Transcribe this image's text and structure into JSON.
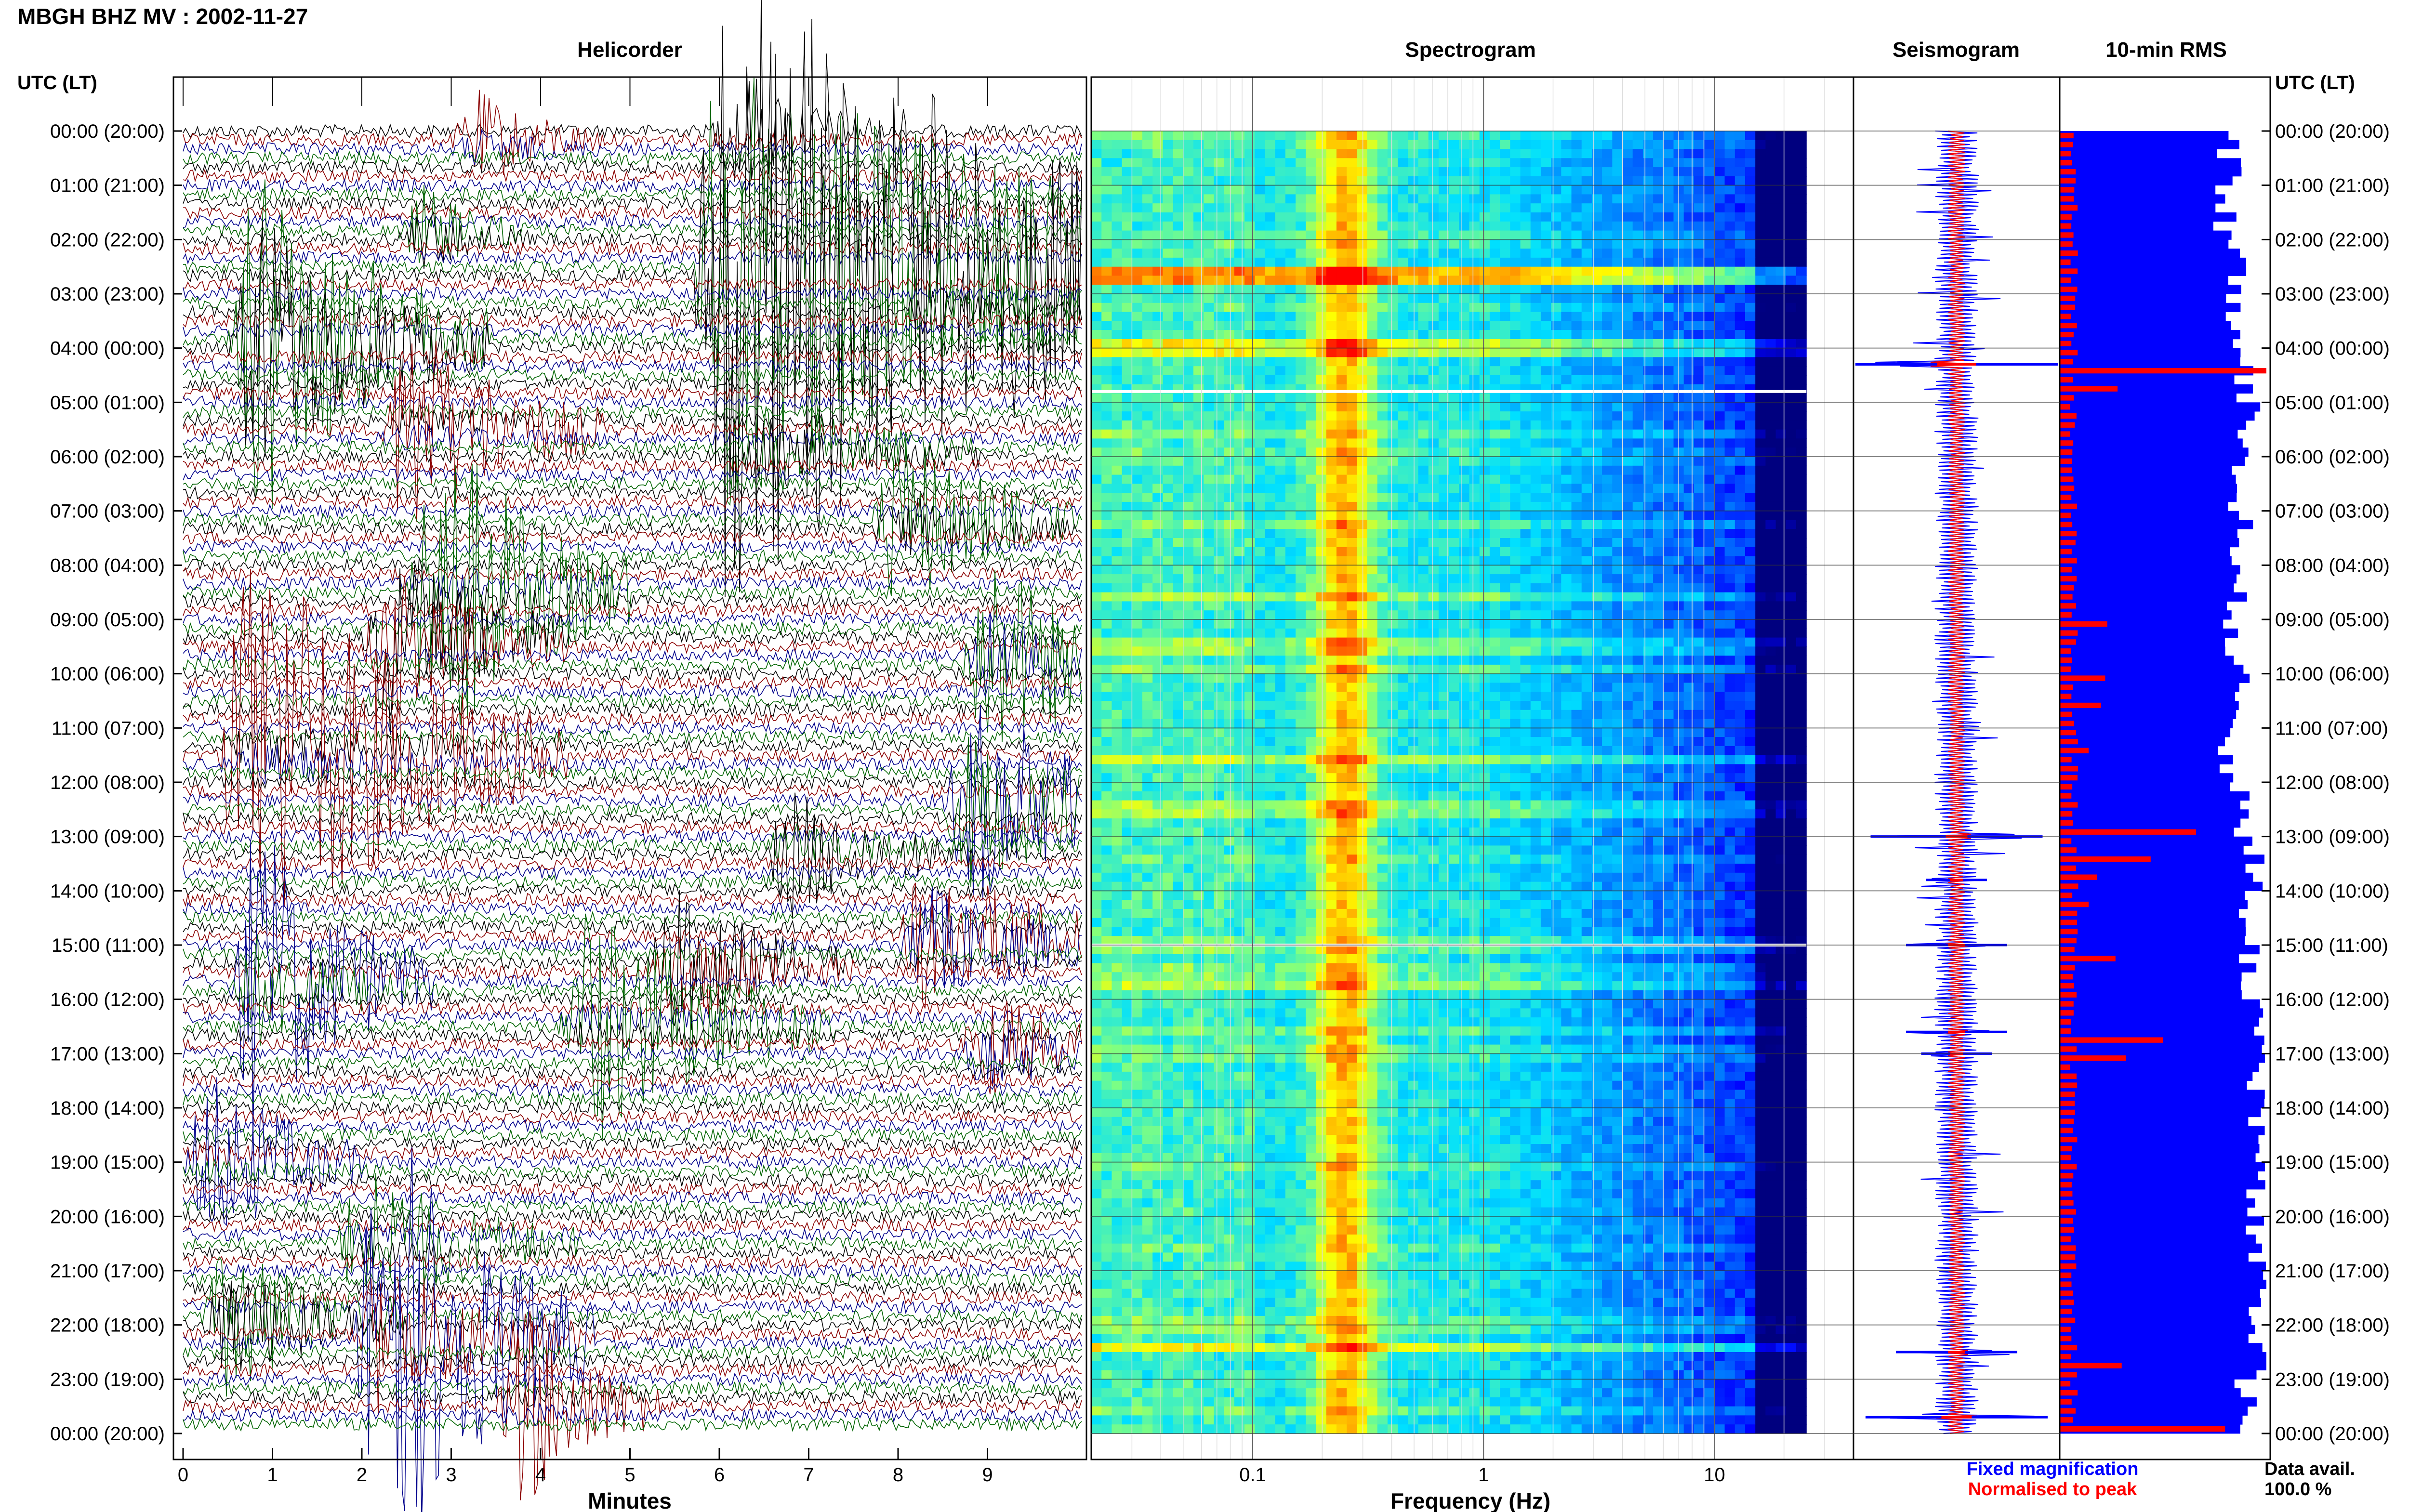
{
  "title": "MBGH BHZ MV : 2002-11-27",
  "panels": {
    "helicorder": "Helicorder",
    "spectrogram": "Spectrogram",
    "seismogram": "Seismogram",
    "rms": "10-min RMS"
  },
  "time_axis_title": "UTC (LT)",
  "time_labels": [
    "00:00 (20:00)",
    "01:00 (21:00)",
    "02:00 (22:00)",
    "03:00 (23:00)",
    "04:00 (00:00)",
    "05:00 (01:00)",
    "06:00 (02:00)",
    "07:00 (03:00)",
    "08:00 (04:00)",
    "09:00 (05:00)",
    "10:00 (06:00)",
    "11:00 (07:00)",
    "12:00 (08:00)",
    "13:00 (09:00)",
    "14:00 (10:00)",
    "15:00 (11:00)",
    "16:00 (12:00)",
    "17:00 (13:00)",
    "18:00 (14:00)",
    "19:00 (15:00)",
    "20:00 (16:00)",
    "21:00 (17:00)",
    "22:00 (18:00)",
    "23:00 (19:00)",
    "00:00 (20:00)"
  ],
  "legend": {
    "fixed": "Fixed magnification",
    "normalised": "Normalised to peak",
    "avail_label": "Data avail.",
    "avail_value": "100.0 %"
  },
  "colors": {
    "helicorder_traces": [
      "#000000",
      "#8b0000",
      "#00008b",
      "#006400"
    ],
    "fixed": "#0000ff",
    "normalised": "#ff0000"
  },
  "chart_data": [
    {
      "type": "line",
      "panel": "helicorder",
      "xlabel": "Minutes",
      "xticks": [
        "0",
        "1",
        "2",
        "3",
        "4",
        "5",
        "6",
        "7",
        "8",
        "9"
      ],
      "xlim": [
        0,
        10
      ],
      "ylim_hours_utc": [
        0,
        24
      ],
      "rows": 144,
      "row_minutes": 10,
      "events": [
        {
          "hour": 0.0,
          "minute": 6.2,
          "amp": 0.8,
          "dur": 0.8
        },
        {
          "hour": 0.2,
          "minute": 3.3,
          "amp": 0.7,
          "dur": 0.7
        },
        {
          "hour": 1.9,
          "minute": 2.7,
          "amp": 0.8,
          "dur": 0.6
        },
        {
          "hour": 2.6,
          "minute": 6.0,
          "amp": 7.0,
          "dur": 3.5
        },
        {
          "hour": 3.2,
          "minute": 8.3,
          "amp": 0.9,
          "dur": 1.0
        },
        {
          "hour": 3.9,
          "minute": 0.8,
          "amp": 4.0,
          "dur": 1.3
        },
        {
          "hour": 5.5,
          "minute": 2.5,
          "amp": 1.5,
          "dur": 1.1
        },
        {
          "hour": 5.9,
          "minute": 6.5,
          "amp": 0.9,
          "dur": 1.2
        },
        {
          "hour": 7.2,
          "minute": 8.0,
          "amp": 1.5,
          "dur": 1.0
        },
        {
          "hour": 8.5,
          "minute": 2.8,
          "amp": 2.5,
          "dur": 1.1
        },
        {
          "hour": 9.4,
          "minute": 2.3,
          "amp": 2.2,
          "dur": 1.0
        },
        {
          "hour": 9.8,
          "minute": 9.0,
          "amp": 1.8,
          "dur": 1.0
        },
        {
          "hour": 11.5,
          "minute": 0.7,
          "amp": 3.0,
          "dur": 1.8
        },
        {
          "hour": 12.4,
          "minute": 8.8,
          "amp": 2.2,
          "dur": 1.3
        },
        {
          "hour": 13.3,
          "minute": 6.8,
          "amp": 1.0,
          "dur": 1.0
        },
        {
          "hour": 14.9,
          "minute": 8.3,
          "amp": 1.6,
          "dur": 1.3
        },
        {
          "hour": 15.7,
          "minute": 0.8,
          "amp": 2.6,
          "dur": 1.0
        },
        {
          "hour": 15.4,
          "minute": 5.5,
          "amp": 1.5,
          "dur": 1.0
        },
        {
          "hour": 16.5,
          "minute": 4.5,
          "amp": 1.6,
          "dur": 1.4
        },
        {
          "hour": 16.9,
          "minute": 9.0,
          "amp": 1.1,
          "dur": 0.8
        },
        {
          "hour": 19.0,
          "minute": 0.3,
          "amp": 1.2,
          "dur": 0.9
        },
        {
          "hour": 20.5,
          "minute": 2.0,
          "amp": 1.0,
          "dur": 1.2
        },
        {
          "hour": 22.3,
          "minute": 2.2,
          "amp": 4.0,
          "dur": 1.2
        },
        {
          "hour": 21.9,
          "minute": 0.5,
          "amp": 1.6,
          "dur": 1.0
        },
        {
          "hour": 23.5,
          "minute": 3.8,
          "amp": 1.3,
          "dur": 0.8
        }
      ]
    },
    {
      "type": "heatmap",
      "panel": "spectrogram",
      "xlabel": "Frequency (Hz)",
      "xscale": "log",
      "xlim": [
        0.02,
        40
      ],
      "xticks": [
        0.1,
        1,
        10
      ],
      "xtick_labels": [
        "0.1",
        "1",
        "10"
      ],
      "data_max_hz": 25,
      "peak_band_hz": [
        0.2,
        0.3
      ],
      "gaps_hour_utc": [
        4.8,
        15.0
      ],
      "colorscale": [
        "#00007f",
        "#0000ff",
        "#0080ff",
        "#00e0ff",
        "#80ff80",
        "#ffff00",
        "#ff8000",
        "#ff0000"
      ]
    },
    {
      "type": "line",
      "panel": "seismogram",
      "ylim_hours_utc": [
        0,
        24
      ],
      "spikes": [
        {
          "hour": 4.3,
          "fixed": 1.0,
          "norm": 0.9
        },
        {
          "hour": 13.0,
          "fixed": 0.85,
          "norm": 0.5
        },
        {
          "hour": 13.8,
          "fixed": 0.3,
          "norm": 0.3
        },
        {
          "hour": 15.0,
          "fixed": 0.5,
          "norm": 0.4
        },
        {
          "hour": 16.6,
          "fixed": 0.5,
          "norm": 0.4
        },
        {
          "hour": 17.0,
          "fixed": 0.35,
          "norm": 0.3
        },
        {
          "hour": 22.5,
          "fixed": 0.6,
          "norm": 0.4
        },
        {
          "hour": 23.7,
          "fixed": 0.9,
          "norm": 0.7
        }
      ]
    },
    {
      "type": "bar",
      "panel": "rms",
      "interval_minutes": 10,
      "fixed_rms_hourly": [
        0.82,
        0.8,
        0.86,
        0.84,
        0.88,
        0.92,
        0.86,
        0.88,
        0.85,
        0.84,
        0.86,
        0.82,
        0.88,
        0.94,
        0.9,
        0.92,
        0.96,
        0.96,
        0.96,
        0.94,
        0.94,
        0.95,
        0.96,
        0.9
      ],
      "normalised_peaks": [
        {
          "hour": 4.3,
          "value": 1.0
        },
        {
          "hour": 4.6,
          "value": 0.28
        },
        {
          "hour": 9.0,
          "value": 0.23
        },
        {
          "hour": 10.0,
          "value": 0.22
        },
        {
          "hour": 10.5,
          "value": 0.2
        },
        {
          "hour": 11.4,
          "value": 0.14
        },
        {
          "hour": 12.8,
          "value": 0.66
        },
        {
          "hour": 13.4,
          "value": 0.44
        },
        {
          "hour": 13.7,
          "value": 0.18
        },
        {
          "hour": 14.2,
          "value": 0.14
        },
        {
          "hour": 15.1,
          "value": 0.27
        },
        {
          "hour": 16.6,
          "value": 0.5
        },
        {
          "hour": 17.0,
          "value": 0.32
        },
        {
          "hour": 22.6,
          "value": 0.3
        },
        {
          "hour": 23.8,
          "value": 0.8
        }
      ]
    }
  ]
}
